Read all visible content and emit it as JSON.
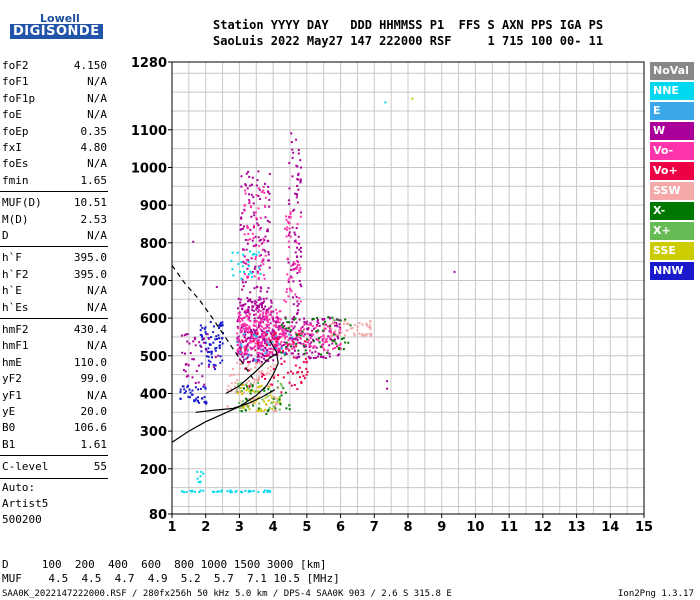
{
  "logo": {
    "top": "Lowell",
    "main": "DIGISONDE"
  },
  "header": {
    "line1": "Station YYYY DAY   DDD HHMMSS P1  FFS S AXN PPS IGA PS",
    "line2": "SaoLuis 2022 May27 147 222000 RSF     1 715 100 00- 11"
  },
  "params": [
    {
      "label": "foF2",
      "value": "4.150"
    },
    {
      "label": "foF1",
      "value": "N/A"
    },
    {
      "label": "foF1p",
      "value": "N/A"
    },
    {
      "label": "foE",
      "value": "N/A"
    },
    {
      "label": "foEp",
      "value": "0.35"
    },
    {
      "label": "fxI",
      "value": "4.80"
    },
    {
      "label": "foEs",
      "value": "N/A"
    },
    {
      "label": "fmin",
      "value": "1.65"
    },
    {
      "label": "MUF(D)",
      "value": "10.51"
    },
    {
      "label": "M(D)",
      "value": "2.53"
    },
    {
      "label": "D",
      "value": "N/A"
    },
    {
      "label": "h`F",
      "value": "395.0"
    },
    {
      "label": "h`F2",
      "value": "395.0"
    },
    {
      "label": "h`E",
      "value": "N/A"
    },
    {
      "label": "h`Es",
      "value": "N/A"
    },
    {
      "label": "hmF2",
      "value": "430.4"
    },
    {
      "label": "hmF1",
      "value": "N/A"
    },
    {
      "label": "hmE",
      "value": "110.0"
    },
    {
      "label": "yF2",
      "value": "99.0"
    },
    {
      "label": "yF1",
      "value": "N/A"
    },
    {
      "label": "yE",
      "value": "20.0"
    },
    {
      "label": "B0",
      "value": "106.6"
    },
    {
      "label": "B1",
      "value": "1.61"
    },
    {
      "label": "C-level",
      "value": "55"
    }
  ],
  "auto": {
    "line1": "Auto:",
    "line2": "Artist5",
    "line3": "500200"
  },
  "legend": [
    {
      "label": "NoVal",
      "color": "#888888"
    },
    {
      "label": "NNE",
      "color": "#00d8f0"
    },
    {
      "label": "E",
      "color": "#3aa8e8"
    },
    {
      "label": "W",
      "color": "#aa0099"
    },
    {
      "label": "Vo-",
      "color": "#ff33aa"
    },
    {
      "label": "Vo+",
      "color": "#ee0044"
    },
    {
      "label": "SSW",
      "color": "#f4a8a8"
    },
    {
      "label": "X-",
      "color": "#007700"
    },
    {
      "label": "X+",
      "color": "#66bb55"
    },
    {
      "label": "SSE",
      "color": "#cccc00"
    },
    {
      "label": "NNW",
      "color": "#1a1acc"
    }
  ],
  "footer": {
    "d_row": "D     100  200  400  600  800 1000 1500 3000 [km]",
    "muf_row": "MUF    4.5  4.5  4.7  4.9  5.2  5.7  7.1 10.5 [MHz]",
    "info": "SAA0K_2022147222000.RSF / 280fx256h 50 kHz 5.0 km / DPS-4 SAA0K 903 / 2.6 S 315.8 E",
    "version": "Ion2Png 1.3.17"
  },
  "chart_data": {
    "type": "scatter",
    "xlim": [
      1,
      15
    ],
    "ylim": [
      80,
      1280
    ],
    "xticks": [
      "1",
      "2",
      "3",
      "4",
      "5",
      "6",
      "7",
      "8",
      "9",
      "10",
      "11",
      "12",
      "13",
      "14",
      "15"
    ],
    "yticks": [
      {
        "v": 80,
        "label": "80"
      },
      {
        "v": 200,
        "label": "200"
      },
      {
        "v": 300,
        "label": "300"
      },
      {
        "v": 400,
        "label": "400"
      },
      {
        "v": 500,
        "label": "500"
      },
      {
        "v": 600,
        "label": "600"
      },
      {
        "v": 700,
        "label": "700"
      },
      {
        "v": 800,
        "label": "800"
      },
      {
        "v": 900,
        "label": "900"
      },
      {
        "v": 1000,
        "label": "1000"
      },
      {
        "v": 1100,
        "label": "1100"
      },
      {
        "v": 1280,
        "label": "1280"
      }
    ],
    "grid": true,
    "curves": [
      {
        "name": "profile",
        "style": "solid",
        "points": [
          [
            1,
            270
          ],
          [
            1.5,
            300
          ],
          [
            2,
            325
          ],
          [
            2.5,
            345
          ],
          [
            3,
            365
          ],
          [
            3.5,
            395
          ],
          [
            3.8,
            420
          ],
          [
            4,
            450
          ],
          [
            4.15,
            480
          ],
          [
            4.1,
            510
          ],
          [
            3.9,
            540
          ]
        ]
      },
      {
        "name": "trace-low",
        "style": "solid",
        "points": [
          [
            1.7,
            350
          ],
          [
            2.2,
            355
          ],
          [
            2.8,
            360
          ],
          [
            3.3,
            375
          ],
          [
            3.7,
            392
          ],
          [
            4.05,
            410
          ]
        ]
      },
      {
        "name": "trace-upper",
        "style": "solid",
        "points": [
          [
            2.6,
            400
          ],
          [
            3,
            420
          ],
          [
            3.5,
            460
          ],
          [
            3.9,
            495
          ],
          [
            4.1,
            505
          ]
        ]
      },
      {
        "name": "trace-x",
        "style": "dashed",
        "points": [
          [
            1,
            740
          ],
          [
            1.4,
            690
          ],
          [
            1.8,
            650
          ],
          [
            2.2,
            600
          ],
          [
            2.5,
            560
          ],
          [
            2.8,
            520
          ],
          [
            3.1,
            480
          ],
          [
            3.4,
            440
          ]
        ]
      }
    ],
    "clusters": [
      {
        "series": "W",
        "x": [
          2.9,
          4.0
        ],
        "y": [
          480,
          650
        ],
        "n": 260
      },
      {
        "series": "Vo-",
        "x": [
          2.9,
          4.2
        ],
        "y": [
          500,
          620
        ],
        "n": 220
      },
      {
        "series": "W",
        "x": [
          3.0,
          3.9
        ],
        "y": [
          650,
          1000
        ],
        "n": 110
      },
      {
        "series": "Vo-",
        "x": [
          3.1,
          3.8
        ],
        "y": [
          700,
          950
        ],
        "n": 60
      },
      {
        "series": "W",
        "x": [
          4.4,
          4.8
        ],
        "y": [
          600,
          1090
        ],
        "n": 80
      },
      {
        "series": "Vo-",
        "x": [
          4.3,
          4.8
        ],
        "y": [
          640,
          900
        ],
        "n": 50
      },
      {
        "series": "W",
        "x": [
          4.0,
          6.0
        ],
        "y": [
          490,
          600
        ],
        "n": 160
      },
      {
        "series": "Vo-",
        "x": [
          4.0,
          6.0
        ],
        "y": [
          510,
          580
        ],
        "n": 120
      },
      {
        "series": "X-",
        "x": [
          4.2,
          6.3
        ],
        "y": [
          500,
          600
        ],
        "n": 60
      },
      {
        "series": "SSW",
        "x": [
          5.6,
          6.9
        ],
        "y": [
          550,
          590
        ],
        "n": 50
      },
      {
        "series": "Vo+",
        "x": [
          3.0,
          5.0
        ],
        "y": [
          400,
          560
        ],
        "n": 80
      },
      {
        "series": "NNW",
        "x": [
          1.8,
          2.5
        ],
        "y": [
          460,
          590
        ],
        "n": 70
      },
      {
        "series": "NNW",
        "x": [
          1.2,
          2.0
        ],
        "y": [
          370,
          420
        ],
        "n": 40
      },
      {
        "series": "SSW",
        "x": [
          2.6,
          4.1
        ],
        "y": [
          350,
          480
        ],
        "n": 90
      },
      {
        "series": "SSE",
        "x": [
          2.8,
          4.2
        ],
        "y": [
          350,
          420
        ],
        "n": 50
      },
      {
        "series": "X+",
        "x": [
          2.9,
          4.3
        ],
        "y": [
          350,
          430
        ],
        "n": 40
      },
      {
        "series": "X-",
        "x": [
          2.9,
          4.5
        ],
        "y": [
          340,
          420
        ],
        "n": 30
      },
      {
        "series": "W",
        "x": [
          1.2,
          2.4
        ],
        "y": [
          420,
          560
        ],
        "n": 40
      },
      {
        "series": "NNE",
        "x": [
          2.7,
          3.6
        ],
        "y": [
          700,
          780
        ],
        "n": 25
      },
      {
        "series": "E",
        "x": [
          2.9,
          4.6
        ],
        "y": [
          480,
          560
        ],
        "n": 30
      },
      {
        "series": "NNE",
        "x": [
          1.0,
          4.0
        ],
        "y": [
          135,
          140
        ],
        "n": 40
      },
      {
        "series": "NNE",
        "x": [
          1.7,
          1.9
        ],
        "y": [
          160,
          190
        ],
        "n": 8
      }
    ],
    "points": [
      {
        "series": "NNE",
        "x": 7.3,
        "y": 1170
      },
      {
        "series": "SSE",
        "x": 8.1,
        "y": 1180
      },
      {
        "series": "W",
        "x": 9.35,
        "y": 720
      },
      {
        "series": "W",
        "x": 7.35,
        "y": 410
      },
      {
        "series": "W",
        "x": 7.35,
        "y": 430
      },
      {
        "series": "W",
        "x": 1.6,
        "y": 800
      },
      {
        "series": "W",
        "x": 2.3,
        "y": 680
      }
    ]
  }
}
